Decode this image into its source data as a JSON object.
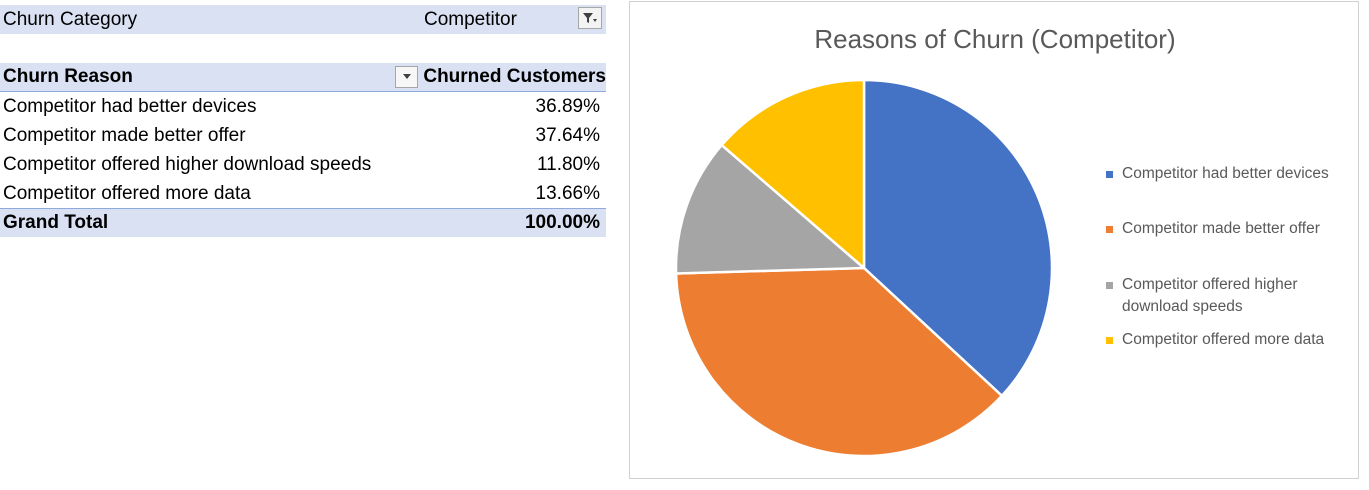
{
  "pivot": {
    "filter_label": "Churn Category",
    "filter_value": "Competitor",
    "col_header_reason": "Churn Reason",
    "col_header_value": "Churned Customers",
    "rows": [
      {
        "reason": "Competitor had better devices",
        "value": "36.89%"
      },
      {
        "reason": "Competitor made better offer",
        "value": "37.64%"
      },
      {
        "reason": "Competitor offered higher download speeds",
        "value": "11.80%"
      },
      {
        "reason": "Competitor offered more data",
        "value": "13.66%"
      }
    ],
    "total_label": "Grand Total",
    "total_value": "100.00%",
    "filter_icon": "filter-dropdown-icon",
    "dropdown_icon": "chevron-down-icon"
  },
  "chart_data": {
    "type": "pie",
    "title": "Reasons of Churn (Competitor)",
    "categories": [
      "Competitor had better devices",
      "Competitor made better offer",
      "Competitor offered higher download speeds",
      "Competitor offered more data"
    ],
    "values": [
      36.89,
      37.64,
      11.8,
      13.66
    ],
    "colors": [
      "#4472c4",
      "#ed7d31",
      "#a5a5a5",
      "#ffc000"
    ],
    "legend_position": "right",
    "start_angle_deg": 0,
    "direction": "clockwise"
  }
}
